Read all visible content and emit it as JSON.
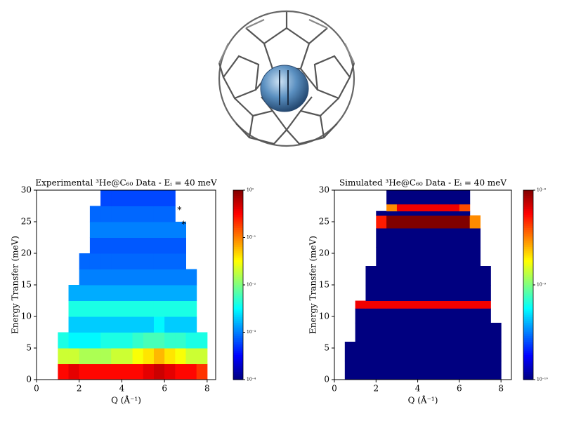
{
  "chart_data": [
    {
      "type": "heatmap",
      "title": "Experimental ³He@C₆₀ Data - Eᵢ = 40 meV",
      "x_label": "Q (Å⁻¹)",
      "y_label": "Energy Transfer (meV)",
      "x_edges": [
        0.5,
        1,
        1.5,
        2,
        2.5,
        3,
        3.5,
        4,
        4.5,
        5,
        5.5,
        6,
        6.5,
        7,
        7.5,
        8,
        8.5
      ],
      "y_edges": [
        0,
        2.5,
        5,
        7.5,
        10,
        12.5,
        15,
        17.5,
        20,
        22.5,
        25,
        27.5,
        30
      ],
      "values": [
        [
          null,
          0.3,
          0.4,
          0.3,
          0.3,
          0.3,
          0.3,
          0.3,
          0.3,
          0.4,
          0.5,
          0.4,
          0.3,
          0.3,
          0.2,
          null
        ],
        [
          null,
          0.02,
          0.02,
          0.015,
          0.015,
          0.015,
          0.02,
          0.02,
          0.03,
          0.04,
          0.06,
          0.04,
          0.03,
          0.02,
          0.02,
          null
        ],
        [
          null,
          0.004,
          0.003,
          0.003,
          0.003,
          0.004,
          0.004,
          0.004,
          0.005,
          0.006,
          0.006,
          0.005,
          0.005,
          0.004,
          0.004,
          null
        ],
        [
          null,
          null,
          0.002,
          0.002,
          0.002,
          0.002,
          0.002,
          0.002,
          0.002,
          0.002,
          0.003,
          0.002,
          0.002,
          0.002,
          null,
          null
        ],
        [
          null,
          null,
          0.004,
          0.004,
          0.004,
          0.004,
          0.004,
          0.004,
          0.004,
          0.004,
          0.004,
          0.004,
          0.004,
          0.004,
          null,
          null
        ],
        [
          null,
          null,
          0.0015,
          0.0015,
          0.0015,
          0.0015,
          0.0015,
          0.0015,
          0.0015,
          0.0015,
          0.0015,
          0.0015,
          0.0015,
          0.0015,
          null,
          null
        ],
        [
          null,
          null,
          null,
          0.001,
          0.001,
          0.001,
          0.001,
          0.001,
          0.001,
          0.001,
          0.001,
          0.001,
          0.001,
          0.001,
          null,
          null
        ],
        [
          null,
          null,
          null,
          0.0008,
          0.0008,
          0.0008,
          0.0008,
          0.0008,
          0.0008,
          0.0008,
          0.0008,
          0.0008,
          0.0008,
          null,
          null,
          null
        ],
        [
          null,
          null,
          null,
          null,
          0.0007,
          0.0007,
          0.0007,
          0.0007,
          0.0007,
          0.0007,
          0.0007,
          0.0007,
          0.0007,
          null,
          null,
          null
        ],
        [
          null,
          null,
          null,
          null,
          0.001,
          0.001,
          0.001,
          0.001,
          0.001,
          0.001,
          0.001,
          0.001,
          0.001,
          null,
          null,
          null
        ],
        [
          null,
          null,
          null,
          null,
          0.0008,
          0.0008,
          0.0008,
          0.0008,
          0.0008,
          0.0008,
          0.0008,
          0.0008,
          null,
          null,
          null,
          null
        ],
        [
          null,
          null,
          null,
          null,
          null,
          0.0006,
          0.0006,
          0.0006,
          0.0006,
          0.0006,
          0.0006,
          0.0006,
          null,
          null,
          null,
          null
        ]
      ],
      "xlim": [
        0,
        8.4
      ],
      "ylim": [
        0,
        30
      ],
      "xticks": [
        0,
        2,
        4,
        6,
        8
      ],
      "yticks": [
        0,
        5,
        10,
        15,
        20,
        25,
        30
      ],
      "colormap": "jet",
      "colorbar": {
        "scale": "log",
        "lim": [
          0.0001,
          1
        ],
        "ticks": [
          {
            "value": 1,
            "label": "10⁰"
          },
          {
            "value": 0.1,
            "label": "10⁻¹"
          },
          {
            "value": 0.01,
            "label": "10⁻²"
          },
          {
            "value": 0.001,
            "label": "10⁻³"
          },
          {
            "value": 0.0001,
            "label": "10⁻⁴"
          }
        ]
      },
      "annotations": [
        {
          "text": "*",
          "x": 6.7,
          "y": 27.3
        },
        {
          "text": "*",
          "x": 6.9,
          "y": 25
        }
      ]
    },
    {
      "type": "heatmap",
      "title": "Simulated ³He@C₆₀ Data - Eᵢ = 40 meV",
      "x_label": "Q (Å⁻¹)",
      "y_label": "Energy Transfer (meV)",
      "x_edges": [
        0.5,
        1,
        1.5,
        2,
        2.5,
        3,
        3.5,
        4,
        4.5,
        5,
        5.5,
        6,
        6.5,
        7,
        7.5,
        8,
        8.5
      ],
      "y_edges": [
        0,
        3,
        6,
        9,
        11.3,
        12.5,
        15,
        18,
        21,
        24,
        26,
        26.7,
        27.8,
        30
      ],
      "values": [
        [
          1e-10,
          1e-10,
          1e-10,
          1e-10,
          1e-10,
          1e-10,
          1e-10,
          1e-10,
          1e-10,
          1e-10,
          1e-10,
          1e-10,
          1e-10,
          1e-10,
          1e-10,
          null
        ],
        [
          1e-10,
          1e-10,
          1e-10,
          1e-10,
          1e-10,
          1e-10,
          1e-10,
          1e-10,
          1e-10,
          1e-10,
          1e-10,
          1e-10,
          1e-10,
          1e-10,
          1e-10,
          null
        ],
        [
          null,
          1e-10,
          1e-10,
          1e-10,
          1e-10,
          1e-10,
          1e-10,
          1e-10,
          1e-10,
          1e-10,
          1e-10,
          1e-10,
          1e-10,
          1e-10,
          1e-10,
          null
        ],
        [
          null,
          1e-10,
          1e-10,
          1e-10,
          1e-10,
          1e-10,
          1e-10,
          1e-10,
          1e-10,
          1e-10,
          1e-10,
          1e-10,
          1e-10,
          1e-10,
          null,
          null
        ],
        [
          null,
          6e-09,
          6e-09,
          6e-09,
          6e-09,
          6e-09,
          6e-09,
          6e-09,
          6e-09,
          6e-09,
          6e-09,
          6e-09,
          6e-09,
          6e-09,
          null,
          null
        ],
        [
          null,
          null,
          1e-10,
          1e-10,
          1e-10,
          1e-10,
          1e-10,
          1e-10,
          1e-10,
          1e-10,
          1e-10,
          1e-10,
          1e-10,
          1e-10,
          null,
          null
        ],
        [
          null,
          null,
          1e-10,
          1e-10,
          1e-10,
          1e-10,
          1e-10,
          1e-10,
          1e-10,
          1e-10,
          1e-10,
          1e-10,
          1e-10,
          1e-10,
          null,
          null
        ],
        [
          null,
          null,
          null,
          1e-10,
          1e-10,
          1e-10,
          1e-10,
          1e-10,
          1e-10,
          1e-10,
          1e-10,
          1e-10,
          1e-10,
          null,
          null,
          null
        ],
        [
          null,
          null,
          null,
          1e-10,
          1e-10,
          1e-10,
          1e-10,
          1e-10,
          1e-10,
          1e-10,
          1e-10,
          1e-10,
          1e-10,
          null,
          null,
          null
        ],
        [
          null,
          null,
          null,
          5e-09,
          1e-08,
          1e-08,
          1e-08,
          1e-08,
          1e-08,
          1e-08,
          1e-08,
          1e-08,
          3e-09,
          null,
          null,
          null
        ],
        [
          null,
          null,
          null,
          1e-10,
          1e-10,
          1e-10,
          1e-10,
          1e-10,
          1e-10,
          1e-10,
          1e-10,
          1e-10,
          null,
          null,
          null,
          null
        ],
        [
          null,
          null,
          null,
          null,
          3e-09,
          6e-09,
          6e-09,
          6e-09,
          6e-09,
          6e-09,
          6e-09,
          4e-09,
          null,
          null,
          null,
          null
        ],
        [
          null,
          null,
          null,
          null,
          1e-10,
          1e-10,
          1e-10,
          1e-10,
          1e-10,
          1e-10,
          1e-10,
          1e-10,
          null,
          null,
          null,
          null
        ]
      ],
      "xlim": [
        0,
        8.5
      ],
      "ylim": [
        0,
        30
      ],
      "xticks": [
        0,
        2,
        4,
        6,
        8
      ],
      "yticks": [
        0,
        5,
        10,
        15,
        20,
        25,
        30
      ],
      "colormap": "jet",
      "colorbar": {
        "scale": "log",
        "lim": [
          1e-10,
          1e-08
        ],
        "ticks": [
          {
            "value": 1e-08,
            "label": "10⁻⁸"
          },
          {
            "value": 1e-09,
            "label": "10⁻⁹"
          },
          {
            "value": 1e-10,
            "label": "10⁻¹⁰"
          }
        ]
      }
    }
  ]
}
